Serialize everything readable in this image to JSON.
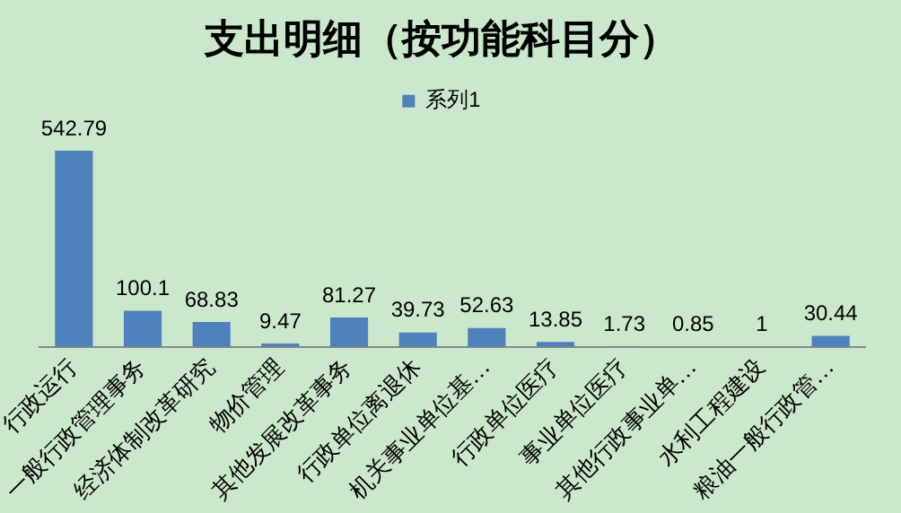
{
  "chart_data": {
    "type": "bar",
    "title": "支出明细（按功能科目分）",
    "categories": [
      "行政运行",
      "一般行政管理事务",
      "经济体制改革研究",
      "物价管理",
      "其他发展改革事务",
      "行政单位离退休",
      "机关事业单位基…",
      "行政单位医疗",
      "事业单位医疗",
      "其他行政事业单…",
      "水利工程建设",
      "粮油一般行政管…"
    ],
    "series": [
      {
        "name": "系列1",
        "color": "#4f81bd",
        "values": [
          542.79,
          100.1,
          68.83,
          9.47,
          81.27,
          39.73,
          52.63,
          13.85,
          1.73,
          0.85,
          1,
          30.44
        ]
      }
    ],
    "data_labels": true,
    "legend": "top",
    "grid": false
  }
}
